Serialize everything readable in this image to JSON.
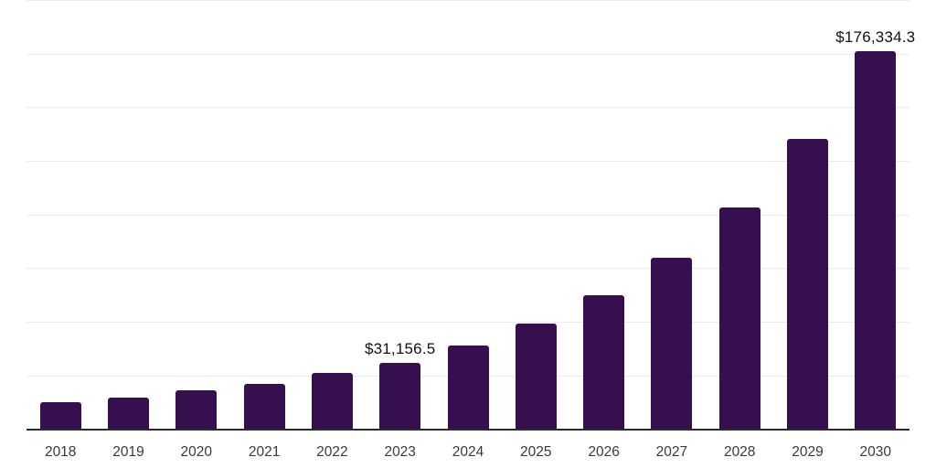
{
  "chart_data": {
    "type": "bar",
    "title": "",
    "xlabel": "",
    "ylabel": "",
    "categories": [
      "2018",
      "2019",
      "2020",
      "2021",
      "2022",
      "2023",
      "2024",
      "2025",
      "2026",
      "2027",
      "2028",
      "2029",
      "2030"
    ],
    "values": [
      12800,
      14900,
      18200,
      21400,
      26400,
      31156.5,
      39400,
      49400,
      62500,
      79900,
      103700,
      135600,
      176334.3
    ],
    "data_labels": [
      "",
      "",
      "",
      "",
      "",
      "$31,156.5",
      "",
      "",
      "",
      "",
      "",
      "",
      "$176,334.3"
    ],
    "ylim": [
      0,
      200000
    ],
    "gridline_interval": 25000,
    "grid": "horizontal",
    "y_tick_labels_visible": false,
    "legend_position": "none",
    "colors": {
      "bar": "#36104e",
      "axis_line": "#2b2b2b",
      "gridline": "#ececec",
      "data_label": "#111111",
      "tick_label": "#3a3a3a",
      "background": "#ffffff"
    }
  }
}
